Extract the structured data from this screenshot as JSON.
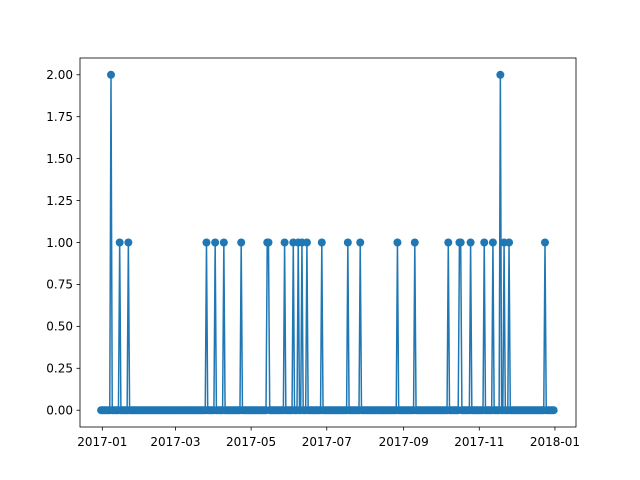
{
  "chart_data": {
    "type": "line",
    "title": "",
    "xlabel": "",
    "ylabel": "",
    "x_axis": "date",
    "xlim": [
      "2016-12-14",
      "2018-01-18"
    ],
    "ylim": [
      -0.1,
      2.1
    ],
    "x_ticks": [
      {
        "date": "2017-01-01",
        "label": "2017-01"
      },
      {
        "date": "2017-03-01",
        "label": "2017-03"
      },
      {
        "date": "2017-05-01",
        "label": "2017-05"
      },
      {
        "date": "2017-07-01",
        "label": "2017-07"
      },
      {
        "date": "2017-09-01",
        "label": "2017-09"
      },
      {
        "date": "2017-11-01",
        "label": "2017-11"
      },
      {
        "date": "2018-01-01",
        "label": "2018-01"
      }
    ],
    "y_ticks": [
      {
        "value": 0.0,
        "label": "0.00"
      },
      {
        "value": 0.25,
        "label": "0.25"
      },
      {
        "value": 0.5,
        "label": "0.50"
      },
      {
        "value": 0.75,
        "label": "0.75"
      },
      {
        "value": 1.0,
        "label": "1.00"
      },
      {
        "value": 1.25,
        "label": "1.25"
      },
      {
        "value": 1.5,
        "label": "1.50"
      },
      {
        "value": 1.75,
        "label": "1.75"
      },
      {
        "value": 2.0,
        "label": "2.00"
      }
    ],
    "grid": false,
    "legend": "none",
    "color": "#1f77b4",
    "marker": "circle",
    "date_range": [
      "2016-12-31",
      "2017-12-31"
    ],
    "baseline_value": 0,
    "spikes": [
      {
        "date": "2017-01-08",
        "value": 2
      },
      {
        "date": "2017-01-15",
        "value": 1
      },
      {
        "date": "2017-01-22",
        "value": 1
      },
      {
        "date": "2017-03-26",
        "value": 1
      },
      {
        "date": "2017-04-02",
        "value": 1
      },
      {
        "date": "2017-04-09",
        "value": 1
      },
      {
        "date": "2017-04-23",
        "value": 1
      },
      {
        "date": "2017-05-14",
        "value": 1
      },
      {
        "date": "2017-05-15",
        "value": 1
      },
      {
        "date": "2017-05-28",
        "value": 1
      },
      {
        "date": "2017-06-04",
        "value": 1
      },
      {
        "date": "2017-06-08",
        "value": 1
      },
      {
        "date": "2017-06-11",
        "value": 1
      },
      {
        "date": "2017-06-15",
        "value": 1
      },
      {
        "date": "2017-06-27",
        "value": 1
      },
      {
        "date": "2017-07-18",
        "value": 1
      },
      {
        "date": "2017-07-28",
        "value": 1
      },
      {
        "date": "2017-08-27",
        "value": 1
      },
      {
        "date": "2017-09-10",
        "value": 1
      },
      {
        "date": "2017-10-07",
        "value": 1
      },
      {
        "date": "2017-10-16",
        "value": 1
      },
      {
        "date": "2017-10-17",
        "value": 1
      },
      {
        "date": "2017-10-25",
        "value": 1
      },
      {
        "date": "2017-11-05",
        "value": 1
      },
      {
        "date": "2017-11-12",
        "value": 1
      },
      {
        "date": "2017-11-18",
        "value": 2
      },
      {
        "date": "2017-11-21",
        "value": 1
      },
      {
        "date": "2017-11-25",
        "value": 1
      },
      {
        "date": "2017-12-24",
        "value": 1
      }
    ]
  }
}
